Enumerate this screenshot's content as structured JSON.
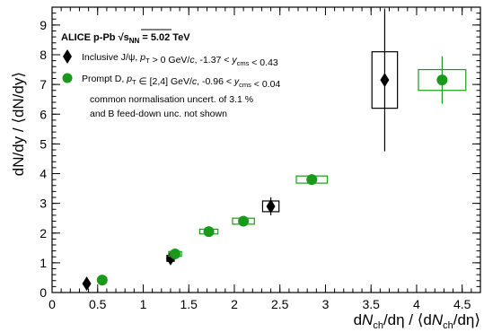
{
  "chart_data": {
    "type": "scatter",
    "title": "ALICE p-Pb",
    "energy_prefix": "√s",
    "energy_sub": "NN",
    "energy_value": " = 5.02 TeV",
    "xlabel": {
      "d": "d",
      "n": "N",
      "sub": "ch",
      "mid": "/dη / ⟨d",
      "n2": "N",
      "sub2": "ch",
      "end": "/dη⟩"
    },
    "ylabel": "dN/dy / ⟨dN/dy⟩",
    "xlim": [
      0,
      4.7
    ],
    "ylim": [
      0,
      9.6
    ],
    "xticks": [
      0,
      0.5,
      1,
      1.5,
      2,
      2.5,
      3,
      3.5,
      4,
      4.5
    ],
    "xtick_labels": [
      "0",
      "0.5",
      "1",
      "1.5",
      "2",
      "2.5",
      "3",
      "3.5",
      "4",
      "4.5"
    ],
    "yticks": [
      0,
      1,
      2,
      3,
      4,
      5,
      6,
      7,
      8,
      9
    ],
    "ytick_labels": [
      "0",
      "1",
      "2",
      "3",
      "4",
      "5",
      "6",
      "7",
      "8",
      "9"
    ],
    "grid": false,
    "legend_position": "top-left",
    "series": [
      {
        "name_parts": [
          "Inclusive J/ψ, ",
          "p",
          "T",
          " > 0 GeV/",
          "c",
          ", -1.37 < ",
          "y",
          "cms",
          " < 0.43"
        ],
        "marker": "diamond",
        "color": "#000000",
        "points": [
          {
            "x": 0.38,
            "y": 0.3,
            "err": 0.05,
            "sx": 0.03,
            "sy": 0.05
          },
          {
            "x": 1.3,
            "y": 1.15,
            "err": 0.08,
            "sx": 0.04,
            "sy": 0.1
          },
          {
            "x": 2.4,
            "y": 2.9,
            "err": 0.3,
            "sx": 0.09,
            "sy": 0.18
          },
          {
            "x": 3.65,
            "y": 7.15,
            "err": 2.4,
            "sx": 0.14,
            "sy": 0.95
          }
        ]
      },
      {
        "name_parts": [
          "Prompt D, ",
          "p",
          "T",
          " ∈ [2,4] GeV/",
          "c",
          ", -0.96 < ",
          "y",
          "cms",
          " < 0.04"
        ],
        "marker": "circle",
        "color": "#1a9a1a",
        "points": [
          {
            "x": 0.55,
            "y": 0.42,
            "err": 0.02,
            "sx": 0.03,
            "sy": 0.04
          },
          {
            "x": 1.35,
            "y": 1.3,
            "err": 0.04,
            "sx": 0.07,
            "sy": 0.08
          },
          {
            "x": 1.72,
            "y": 2.05,
            "err": 0.04,
            "sx": 0.1,
            "sy": 0.08
          },
          {
            "x": 2.1,
            "y": 2.4,
            "err": 0.05,
            "sx": 0.12,
            "sy": 0.1
          },
          {
            "x": 2.85,
            "y": 3.8,
            "err": 0.05,
            "sx": 0.17,
            "sy": 0.12
          },
          {
            "x": 4.28,
            "y": 7.15,
            "err": 0.8,
            "sx": 0.26,
            "sy": 0.35
          }
        ]
      }
    ],
    "annotation_lines": [
      "common normalisation uncert. of 3.1 %",
      "and B feed-down unc. not shown"
    ]
  }
}
